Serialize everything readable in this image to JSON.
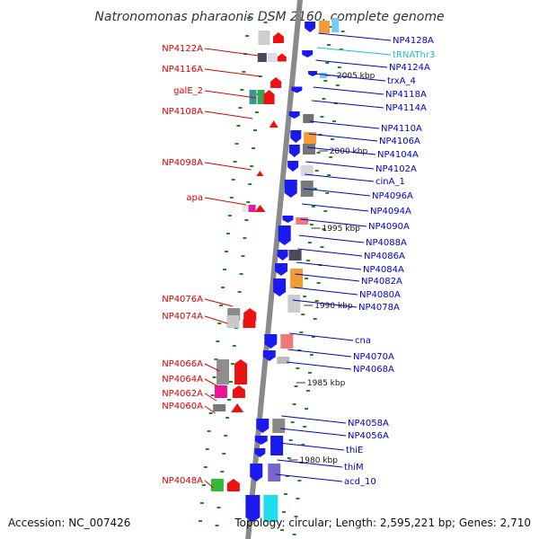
{
  "title": "Natronomonas pharaonis DSM 2160, complete genome",
  "footer": {
    "accession": "Accession: NC_007426",
    "summary": "Topology: circular; Length: 2,595,221 bp; Genes: 2,710"
  },
  "kbp_marks": [
    {
      "label": "2005 kbp"
    },
    {
      "label": "2000 kbp"
    },
    {
      "label": "1995 kbp"
    },
    {
      "label": "1990 kbp"
    },
    {
      "label": "1985 kbp"
    },
    {
      "label": "1980 kbp"
    }
  ],
  "left_labels": [
    {
      "text": "NP4122A"
    },
    {
      "text": "NP4116A"
    },
    {
      "text": "galE_2"
    },
    {
      "text": "NP4108A"
    },
    {
      "text": "NP4098A"
    },
    {
      "text": "apa"
    },
    {
      "text": "NP4076A"
    },
    {
      "text": "NP4074A"
    },
    {
      "text": "NP4066A"
    },
    {
      "text": "NP4064A"
    },
    {
      "text": "NP4062A"
    },
    {
      "text": "NP4060A"
    },
    {
      "text": "NP4048A"
    }
  ],
  "right_labels": [
    {
      "text": "NP4128A",
      "kind": "gene"
    },
    {
      "text": "tRNAThr3",
      "kind": "trna"
    },
    {
      "text": "NP4124A",
      "kind": "gene"
    },
    {
      "text": "trxA_4",
      "kind": "gene"
    },
    {
      "text": "NP4118A",
      "kind": "gene"
    },
    {
      "text": "NP4114A",
      "kind": "gene"
    },
    {
      "text": "NP4110A",
      "kind": "gene"
    },
    {
      "text": "NP4106A",
      "kind": "gene"
    },
    {
      "text": "NP4104A",
      "kind": "gene"
    },
    {
      "text": "NP4102A",
      "kind": "gene"
    },
    {
      "text": "cinA_1",
      "kind": "gene"
    },
    {
      "text": "NP4096A",
      "kind": "gene"
    },
    {
      "text": "NP4094A",
      "kind": "gene"
    },
    {
      "text": "NP4090A",
      "kind": "gene"
    },
    {
      "text": "NP4088A",
      "kind": "gene"
    },
    {
      "text": "NP4086A",
      "kind": "gene"
    },
    {
      "text": "NP4084A",
      "kind": "gene"
    },
    {
      "text": "NP4082A",
      "kind": "gene"
    },
    {
      "text": "NP4080A",
      "kind": "gene"
    },
    {
      "text": "NP4078A",
      "kind": "gene"
    },
    {
      "text": "cna",
      "kind": "gene"
    },
    {
      "text": "NP4070A",
      "kind": "gene"
    },
    {
      "text": "NP4068A",
      "kind": "gene"
    },
    {
      "text": "NP4058A",
      "kind": "gene"
    },
    {
      "text": "NP4056A",
      "kind": "gene"
    },
    {
      "text": "thiE",
      "kind": "gene"
    },
    {
      "text": "thiM",
      "kind": "gene"
    },
    {
      "text": "acd_10",
      "kind": "gene"
    }
  ],
  "colors": {
    "backbone": "#8a8a8a",
    "forward_strand": "#ee1111",
    "reverse_strand": "#1a1aee",
    "left_label": "#dd0000",
    "right_label": "#0000cc",
    "trna": "#22bbdd",
    "tick": "#1f8a1f"
  }
}
